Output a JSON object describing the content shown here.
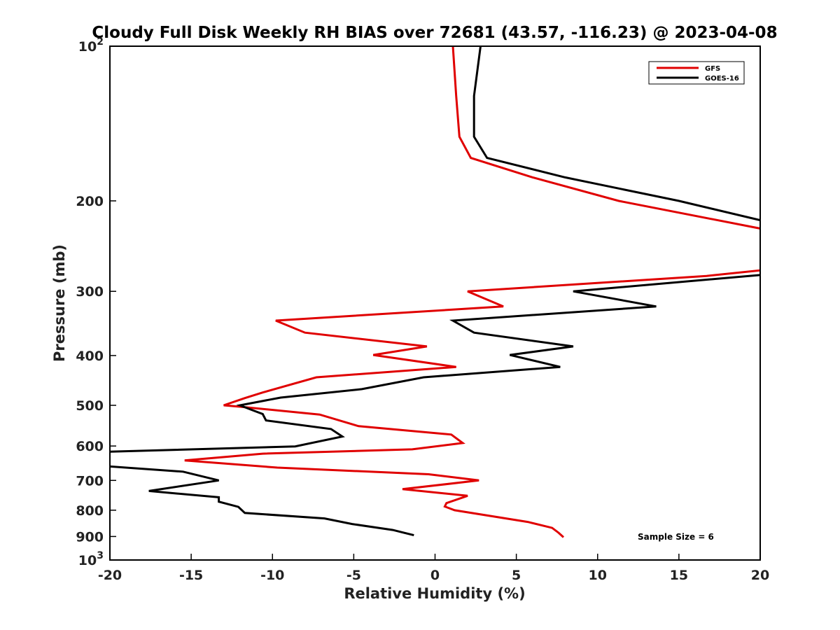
{
  "chart_data": {
    "type": "line",
    "title": "Cloudy Full Disk Weekly RH BIAS over 72681 (43.57, -116.23) @ 2023-04-08",
    "xlabel": "Relative Humidity (%)",
    "ylabel": "Pressure (mb)",
    "xlim": [
      -20,
      20
    ],
    "ylim": [
      100,
      1000
    ],
    "y_scale": "log",
    "y_reversed": true,
    "x_ticks": [
      "-20",
      "-15",
      "-10",
      "-5",
      "0",
      "5",
      "10",
      "15",
      "20"
    ],
    "y_ticks": [
      {
        "value": 100,
        "base": "10",
        "exp": "2"
      },
      {
        "value": 200,
        "label": "200"
      },
      {
        "value": 300,
        "label": "300"
      },
      {
        "value": 400,
        "label": "400"
      },
      {
        "value": 500,
        "label": "500"
      },
      {
        "value": 600,
        "label": "600"
      },
      {
        "value": 700,
        "label": "700"
      },
      {
        "value": 800,
        "label": "800"
      },
      {
        "value": 900,
        "label": "900"
      },
      {
        "value": 1000,
        "base": "10",
        "exp": "3"
      }
    ],
    "grid": false,
    "legend_position": "top-right",
    "annotation": "Sample Size = 6",
    "series": [
      {
        "name": "GFS",
        "color": "#e00000",
        "points": [
          [
            1.1,
            100
          ],
          [
            1.3,
            125
          ],
          [
            1.5,
            150
          ],
          [
            2.2,
            165
          ],
          [
            6,
            180
          ],
          [
            11.3,
            200
          ],
          [
            20.5,
            228
          ],
          [
            20.5,
            272
          ],
          [
            16.7,
            280
          ],
          [
            2,
            300
          ],
          [
            4.2,
            321
          ],
          [
            -9.8,
            342
          ],
          [
            -8,
            361
          ],
          [
            -0.5,
            384
          ],
          [
            -3.8,
            399
          ],
          [
            1.3,
            421
          ],
          [
            -7.3,
            441
          ],
          [
            -10.6,
            472
          ],
          [
            -11.7,
            484
          ],
          [
            -13,
            500
          ],
          [
            -12,
            503
          ],
          [
            -7.1,
            521
          ],
          [
            -4.7,
            549
          ],
          [
            1,
            570
          ],
          [
            1.7,
            592
          ],
          [
            -1.4,
            609
          ],
          [
            -10.6,
            621
          ],
          [
            -15.4,
            640
          ],
          [
            -9.7,
            661
          ],
          [
            -0.4,
            681
          ],
          [
            2.7,
            700
          ],
          [
            -2,
            728
          ],
          [
            2,
            750
          ],
          [
            0.7,
            775
          ],
          [
            0.6,
            787
          ],
          [
            1.2,
            800
          ],
          [
            5.7,
            843
          ],
          [
            7.2,
            866
          ],
          [
            7.6,
            885
          ],
          [
            7.9,
            903
          ]
        ]
      },
      {
        "name": "GOES-16",
        "color": "#000000",
        "points": [
          [
            2.8,
            100
          ],
          [
            2.4,
            125
          ],
          [
            2.4,
            150
          ],
          [
            3.2,
            165
          ],
          [
            8,
            180
          ],
          [
            15,
            200
          ],
          [
            20.5,
            220
          ],
          [
            20.5,
            278
          ],
          [
            8.5,
            300
          ],
          [
            13.6,
            321
          ],
          [
            1.1,
            342
          ],
          [
            2.4,
            361
          ],
          [
            8.5,
            384
          ],
          [
            4.6,
            399
          ],
          [
            7.7,
            421
          ],
          [
            -0.7,
            441
          ],
          [
            -4.5,
            465
          ],
          [
            -9.5,
            483
          ],
          [
            -12,
            500
          ],
          [
            -11.3,
            510
          ],
          [
            -10.6,
            520
          ],
          [
            -10.4,
            535
          ],
          [
            -6.4,
            556
          ],
          [
            -5.7,
            575
          ],
          [
            -8.6,
            601
          ],
          [
            -20.5,
            616
          ],
          [
            -20.5,
            656
          ],
          [
            -15.5,
            673
          ],
          [
            -13.3,
            700
          ],
          [
            -17.6,
            734
          ],
          [
            -13.3,
            755
          ],
          [
            -13.3,
            770
          ],
          [
            -12.1,
            788
          ],
          [
            -11.7,
            810
          ],
          [
            -6.8,
            830
          ],
          [
            -5.1,
            851
          ],
          [
            -2.6,
            874
          ],
          [
            -1.3,
            895
          ]
        ]
      }
    ]
  }
}
